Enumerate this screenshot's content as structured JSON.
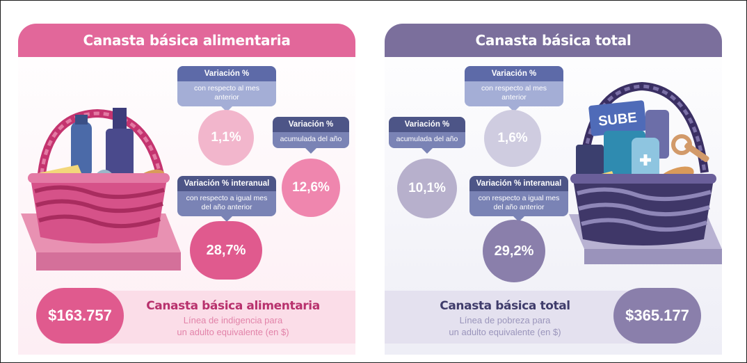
{
  "left": {
    "header": "Canasta básica alimentaria",
    "monthly": {
      "title": "Variación %",
      "subtitle": "con respecto al mes anterior",
      "value": "1,1%"
    },
    "yearly": {
      "title": "Variación %",
      "subtitle": "acumulada del año",
      "value": "12,6%"
    },
    "interannual": {
      "title": "Variación % interanual",
      "subtitle": "con respecto a igual mes del año anterior",
      "value": "28,7%"
    },
    "footer": {
      "amount": "$163.757",
      "title": "Canasta básica alimentaria",
      "line1": "Línea de indigencia para",
      "line2": "un adulto equivalente (en $)"
    }
  },
  "right": {
    "header": "Canasta básica total",
    "monthly": {
      "title": "Variación %",
      "subtitle": "con respecto al mes anterior",
      "value": "1,6%"
    },
    "yearly": {
      "title": "Variación %",
      "subtitle": "acumulada del año",
      "value": "10,1%"
    },
    "interannual": {
      "title": "Variación % interanual",
      "subtitle": "con respecto a igual mes del año anterior",
      "value": "29,2%"
    },
    "footer": {
      "amount": "$365.177",
      "title": "Canasta básica total",
      "line1": "Línea de pobreza para",
      "line2": "un adulto equivalente (en $)"
    },
    "card_label": "SUBE"
  },
  "colors": {
    "pink_header": "#e2679a",
    "purple_header": "#7b6f9c",
    "pink_light": "#f2b6cc",
    "pink_mid": "#ef86ae",
    "pink_dark": "#e05a8e",
    "purple_light": "#cfcce0",
    "purple_mid": "#b7b0cc",
    "purple_dark": "#8a7fab"
  }
}
